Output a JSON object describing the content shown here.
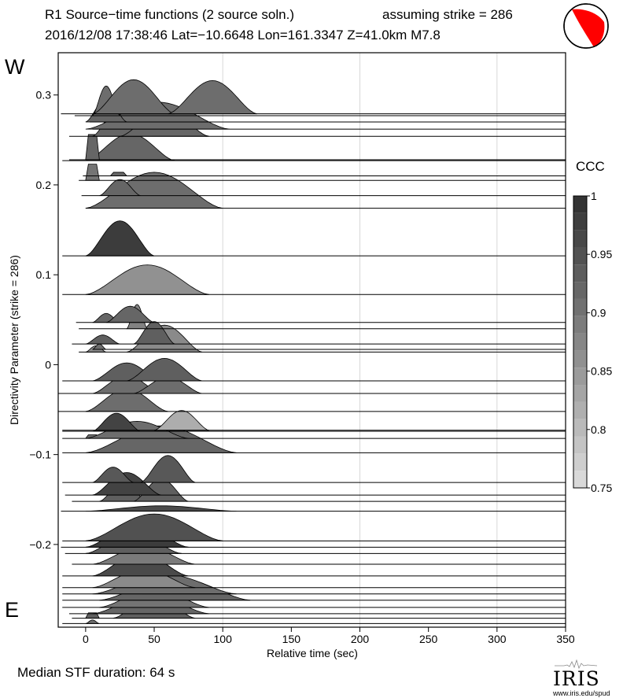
{
  "header": {
    "title_left": "R1 Source−time functions (2 source soln.)",
    "title_right": "assuming strike = 286",
    "subtitle": "2016/12/08 17:38:46  Lat=−10.6648 Lon=161.3347  Z=41.0km  M7.8"
  },
  "direction_top": "W",
  "direction_bottom": "E",
  "footer": {
    "median": "Median STF duration: 64 s",
    "logo_word": "IRIS",
    "logo_url": "www.iris.edu/spud"
  },
  "colorbar": {
    "title": "CCC",
    "min": 0.75,
    "max": 1.0,
    "tick_labels": [
      "1",
      "0.95",
      "0.9",
      "0.85",
      "0.8",
      "0.75"
    ],
    "tick_values": [
      1.0,
      0.95,
      0.9,
      0.85,
      0.8,
      0.75
    ]
  },
  "chart_data": {
    "type": "area",
    "subtype": "stacked-wiggle (stations offset by directivity parameter)",
    "title": "R1 Source−time functions (2 source soln.)",
    "xlabel": "Relative time (sec)",
    "ylabel": "Directivity Parameter (strike = 286)",
    "xlim": [
      -20,
      350
    ],
    "ylim": [
      -0.292,
      0.347
    ],
    "xticks": [
      0,
      50,
      100,
      150,
      200,
      250,
      300,
      350
    ],
    "yticks": [
      0.3,
      0.2,
      0.1,
      0,
      -0.1,
      -0.2
    ],
    "ytick_labels": [
      "0.3",
      "0.2",
      "0.1",
      "0",
      "−0.1",
      "−0.2"
    ],
    "grid_x": [
      100,
      200,
      300
    ],
    "color_scale": "CCC (grayscale, darker = higher)",
    "traces": [
      {
        "y": 0.279,
        "start": -18,
        "ccc": 0.91,
        "pulses": [
          {
            "a": 5,
            "b": 65,
            "h": 0.038,
            "t": "smooth"
          },
          {
            "a": 60,
            "b": 125,
            "h": 0.037,
            "t": "smooth"
          }
        ]
      },
      {
        "y": 0.277,
        "start": -8,
        "ccc": 0.91,
        "pulses": [
          {
            "a": 5,
            "b": 25,
            "h": 0.033,
            "t": "smooth"
          }
        ]
      },
      {
        "y": 0.27,
        "start": 3,
        "ccc": 0.92,
        "pulses": [
          {
            "a": 0,
            "b": 30,
            "h": 0.025,
            "t": "smooth"
          }
        ]
      },
      {
        "y": 0.262,
        "start": 5,
        "ccc": 0.91,
        "pulses": [
          {
            "a": 0,
            "b": 105,
            "h": 0.03,
            "t": "smooth"
          }
        ]
      },
      {
        "y": 0.254,
        "start": -12,
        "ccc": 0.92,
        "pulses": [
          {
            "a": 5,
            "b": 40,
            "h": 0.027,
            "t": "smooth"
          },
          {
            "a": 25,
            "b": 90,
            "h": 0.03,
            "t": "smooth"
          }
        ]
      },
      {
        "y": 0.228,
        "start": -12,
        "ccc": 0.92,
        "pulses": [
          {
            "a": 0,
            "b": 10,
            "h": 0.028,
            "t": "box"
          }
        ]
      },
      {
        "y": 0.227,
        "start": -17,
        "ccc": 0.92,
        "pulses": [
          {
            "a": 0,
            "b": 65,
            "h": 0.03,
            "t": "smooth"
          }
        ]
      },
      {
        "y": 0.21,
        "start": -2,
        "ccc": 0.92,
        "pulses": [
          {
            "a": 18,
            "b": 30,
            "h": 0.004,
            "t": "box"
          }
        ]
      },
      {
        "y": 0.205,
        "start": -5,
        "ccc": 0.9,
        "pulses": [
          {
            "a": 0,
            "b": 10,
            "h": 0.018,
            "t": "box"
          }
        ]
      },
      {
        "y": 0.188,
        "start": -3,
        "ccc": 0.92,
        "pulses": [
          {
            "a": 10,
            "b": 40,
            "h": 0.018,
            "t": "smooth"
          }
        ]
      },
      {
        "y": 0.174,
        "start": 0,
        "ccc": 0.91,
        "pulses": [
          {
            "a": 0,
            "b": 100,
            "h": 0.04,
            "t": "smooth"
          }
        ]
      },
      {
        "y": 0.121,
        "start": -17,
        "ccc": 0.98,
        "pulses": [
          {
            "a": 0,
            "b": 50,
            "h": 0.039,
            "t": "smooth"
          }
        ]
      },
      {
        "y": 0.078,
        "start": -17,
        "ccc": 0.86,
        "pulses": [
          {
            "a": 0,
            "b": 90,
            "h": 0.033,
            "t": "smooth"
          }
        ]
      },
      {
        "y": 0.047,
        "start": -7,
        "ccc": 0.92,
        "pulses": [
          {
            "a": 5,
            "b": 25,
            "h": 0.01,
            "t": "smooth"
          },
          {
            "a": 15,
            "b": 50,
            "h": 0.018,
            "t": "smooth"
          }
        ]
      },
      {
        "y": 0.04,
        "start": -5,
        "ccc": 0.88,
        "pulses": [
          {
            "a": 30,
            "b": 45,
            "h": 0.027,
            "t": "smooth"
          }
        ]
      },
      {
        "y": 0.023,
        "start": -10,
        "ccc": 0.93,
        "pulses": [
          {
            "a": 0,
            "b": 25,
            "h": 0.01,
            "t": "smooth"
          },
          {
            "a": 35,
            "b": 65,
            "h": 0.025,
            "t": "smooth"
          }
        ]
      },
      {
        "y": 0.017,
        "start": 5,
        "ccc": 0.91,
        "pulses": [
          {
            "a": 5,
            "b": 15,
            "h": 0.006,
            "t": "smooth"
          }
        ]
      },
      {
        "y": 0.014,
        "start": -5,
        "ccc": 0.87,
        "pulses": [
          {
            "a": 0,
            "b": 15,
            "h": 0.007,
            "t": "smooth"
          },
          {
            "a": 30,
            "b": 85,
            "h": 0.03,
            "t": "smooth"
          }
        ]
      },
      {
        "y": -0.018,
        "start": -17,
        "ccc": 0.93,
        "pulses": [
          {
            "a": 5,
            "b": 55,
            "h": 0.02,
            "t": "smooth"
          },
          {
            "a": 30,
            "b": 85,
            "h": 0.025,
            "t": "smooth"
          }
        ]
      },
      {
        "y": -0.032,
        "start": -20,
        "ccc": 0.91,
        "pulses": [
          {
            "a": 5,
            "b": 55,
            "h": 0.02,
            "t": "smooth"
          },
          {
            "a": 35,
            "b": 85,
            "h": 0.018,
            "t": "smooth"
          }
        ]
      },
      {
        "y": -0.052,
        "start": -20,
        "ccc": 0.91,
        "pulses": [
          {
            "a": 0,
            "b": 60,
            "h": 0.025,
            "t": "smooth"
          }
        ]
      },
      {
        "y": -0.073,
        "start": -17,
        "ccc": 0.82,
        "pulses": [
          {
            "a": 50,
            "b": 90,
            "h": 0.022,
            "t": "smooth"
          }
        ]
      },
      {
        "y": -0.074,
        "start": -17,
        "ccc": 0.97,
        "pulses": [
          {
            "a": 5,
            "b": 40,
            "h": 0.02,
            "t": "smooth"
          }
        ]
      },
      {
        "y": -0.082,
        "start": -17,
        "ccc": 0.91,
        "pulses": [
          {
            "a": 0,
            "b": 10,
            "h": 0.004,
            "t": "box"
          },
          {
            "a": 0,
            "b": 75,
            "h": 0.019,
            "t": "smooth"
          }
        ]
      },
      {
        "y": -0.098,
        "start": -17,
        "ccc": 0.92,
        "pulses": [
          {
            "a": 0,
            "b": 110,
            "h": 0.03,
            "t": "smooth"
          }
        ]
      },
      {
        "y": -0.131,
        "start": -17,
        "ccc": 0.94,
        "pulses": [
          {
            "a": 5,
            "b": 35,
            "h": 0.017,
            "t": "smooth"
          },
          {
            "a": 40,
            "b": 80,
            "h": 0.03,
            "t": "smooth"
          }
        ]
      },
      {
        "y": -0.145,
        "start": -15,
        "ccc": 0.97,
        "pulses": [
          {
            "a": 5,
            "b": 55,
            "h": 0.025,
            "t": "smooth"
          }
        ]
      },
      {
        "y": -0.152,
        "start": -10,
        "ccc": 0.93,
        "pulses": [
          {
            "a": 10,
            "b": 45,
            "h": 0.02,
            "t": "smooth"
          },
          {
            "a": 35,
            "b": 75,
            "h": 0.025,
            "t": "smooth"
          }
        ]
      },
      {
        "y": -0.163,
        "start": -18,
        "ccc": 0.96,
        "pulses": [
          {
            "a": 0,
            "b": 110,
            "h": 0.006,
            "t": "smooth"
          }
        ]
      },
      {
        "y": -0.196,
        "start": -17,
        "ccc": 0.95,
        "pulses": [
          {
            "a": 0,
            "b": 100,
            "h": 0.03,
            "t": "smooth"
          }
        ]
      },
      {
        "y": -0.203,
        "start": -18,
        "ccc": 0.98,
        "pulses": [
          {
            "a": 0,
            "b": 75,
            "h": 0.025,
            "t": "smooth"
          }
        ]
      },
      {
        "y": -0.21,
        "start": -15,
        "ccc": 0.93,
        "pulses": [
          {
            "a": 0,
            "b": 70,
            "h": 0.022,
            "t": "smooth"
          }
        ]
      },
      {
        "y": -0.222,
        "start": -10,
        "ccc": 0.89,
        "pulses": [
          {
            "a": 5,
            "b": 80,
            "h": 0.02,
            "t": "smooth"
          }
        ]
      },
      {
        "y": -0.235,
        "start": -17,
        "ccc": 0.96,
        "pulses": [
          {
            "a": 5,
            "b": 75,
            "h": 0.025,
            "t": "smooth"
          }
        ]
      },
      {
        "y": -0.248,
        "start": -17,
        "ccc": 0.87,
        "pulses": [
          {
            "a": 5,
            "b": 80,
            "h": 0.02,
            "t": "smooth"
          }
        ]
      },
      {
        "y": -0.255,
        "start": -17,
        "ccc": 0.91,
        "pulses": [
          {
            "a": 5,
            "b": 110,
            "h": 0.022,
            "t": "smooth"
          }
        ]
      },
      {
        "y": -0.262,
        "start": -17,
        "ccc": 0.92,
        "pulses": [
          {
            "a": 10,
            "b": 120,
            "h": 0.025,
            "t": "smooth"
          }
        ]
      },
      {
        "y": -0.27,
        "start": -17,
        "ccc": 0.9,
        "pulses": [
          {
            "a": 10,
            "b": 90,
            "h": 0.02,
            "t": "smooth"
          }
        ]
      },
      {
        "y": -0.277,
        "start": -12,
        "ccc": 0.92,
        "pulses": [
          {
            "a": 5,
            "b": 90,
            "h": 0.02,
            "t": "smooth"
          }
        ]
      },
      {
        "y": -0.282,
        "start": -10,
        "ccc": 0.93,
        "pulses": [
          {
            "a": 0,
            "b": 10,
            "h": 0.006,
            "t": "box"
          },
          {
            "a": 20,
            "b": 80,
            "h": 0.024,
            "t": "smooth"
          }
        ]
      },
      {
        "y": -0.288,
        "start": -17,
        "ccc": 0.91,
        "pulses": [
          {
            "a": 0,
            "b": 10,
            "h": 0.004,
            "t": "smooth"
          }
        ]
      }
    ]
  }
}
